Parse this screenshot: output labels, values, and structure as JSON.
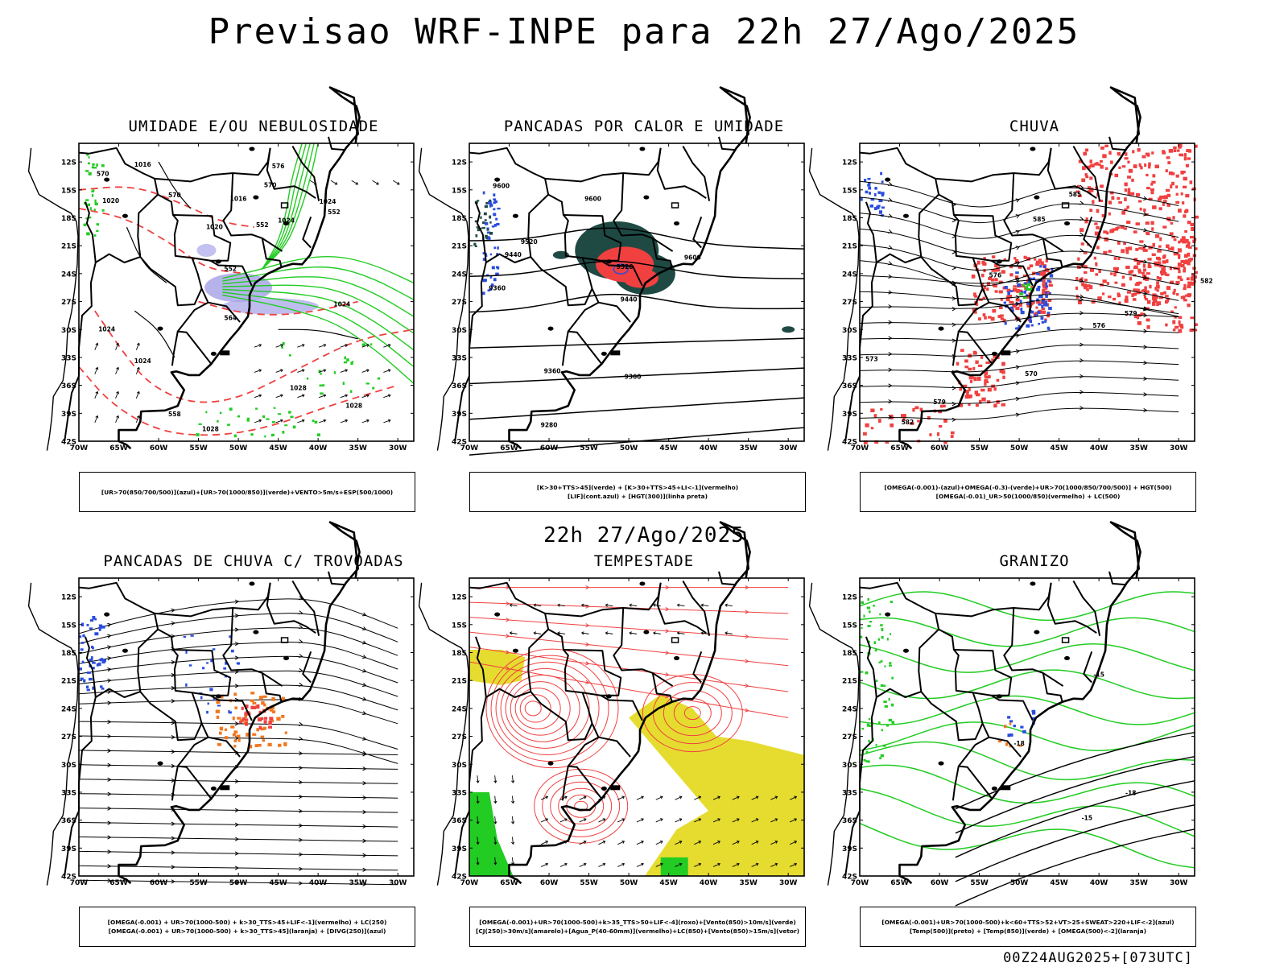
{
  "title": "Previsao WRF-INPE  para 22h 27/Ago/2025",
  "subtitle": "22h 27/Ago/2025",
  "footer": "00Z24AUG2025+[073UTC]",
  "axes": {
    "lat_ticks": [
      "12S",
      "15S",
      "18S",
      "21S",
      "24S",
      "27S",
      "30S",
      "33S",
      "36S",
      "39S",
      "42S"
    ],
    "lon_ticks": [
      "70W",
      "65W",
      "60W",
      "55W",
      "50W",
      "45W",
      "40W",
      "35W",
      "30W"
    ],
    "lat_range": [
      -42,
      -10
    ],
    "lon_range": [
      -70,
      -28
    ]
  },
  "colors": {
    "red": "#f04040",
    "green": "#22cc22",
    "blue": "#2a4de0",
    "teal": "#1f4a44",
    "yellow": "#e6dc30",
    "orange": "#f07820",
    "lavender": "#a9a6e8",
    "salmon": "#f07060"
  },
  "panels": [
    {
      "id": "umidade",
      "title": "UMIDADE E/OU NEBULOSIDADE",
      "legend": [
        "[UR>70(850/700/500)](azul)+[UR>70(1000/850)](verde)+VENTO>5m/s+ESP(500/1000)"
      ],
      "contour_labels": [
        "1016",
        "1016",
        "1020",
        "1020",
        "1024",
        "1024",
        "1024",
        "1028",
        "1028",
        "1028",
        "1024",
        "1024",
        "570",
        "570",
        "564",
        "558",
        "552",
        "552",
        "552",
        "576",
        "570"
      ]
    },
    {
      "id": "pancadas-calor",
      "title": "PANCADAS POR CALOR E UMIDADE",
      "legend": [
        "[K>30+TTS>45](verde)  +  [K>30+TTS>45+LI<-1](vermelho)",
        "[LIF](cont.azul)  +  [HGT(300)](linha preta)"
      ],
      "contour_labels": [
        "9600",
        "9600",
        "9520",
        "9440",
        "9360",
        "9520",
        "9440",
        "9600",
        "9360",
        "9360",
        "9280"
      ]
    },
    {
      "id": "chuva",
      "title": "CHUVA",
      "legend": [
        "[OMEGA(-0.001)-(azul)+OMEGA(-0.3)-(verde)+UR>70(1000/850/700/500)]  +  HGT(500)",
        "[OMEGA(-0.01)_UR>50(1000/850)(vermelho)  +  LC(500)"
      ],
      "contour_labels": [
        "585",
        "585",
        "582",
        "579",
        "576",
        "573",
        "570",
        "579",
        "582",
        "576"
      ]
    },
    {
      "id": "pancadas-trovoadas",
      "title": "PANCADAS DE CHUVA C/ TROVOADAS",
      "legend": [
        "[OMEGA(-0.001)  +  UR>70(1000-500)  +  k>30_TTS>45+LIF<-1](vermelho)  +  LC(250)",
        "[OMEGA(-0.001)  +  UR>70(1000-500)  +  k>30_TTS>45](laranja)  +  [DIVG(250)](azul)"
      ]
    },
    {
      "id": "tempestade",
      "title": "TEMPESTADE",
      "legend": [
        "[OMEGA(-0.001)+UR>70(1000-500)+k>35_TTS>50+LIF<-4](roxo)+[Vento(850)>10m/s](verde)",
        "[CJ(250)>30m/s](amarelo)+[Agua_P(40-60mm)](vermelho)+LC(850)+[Vento(850)>15m/s](vetor)"
      ]
    },
    {
      "id": "granizo",
      "title": "GRANIZO",
      "legend": [
        "[OMEGA(-0.001)+UR>70(1000-500)+k<60+TTS>52+VT>25+SWEAT>220+LIF<-2](azul)",
        "[Temp(500)](preto)  +  [Temp(850)](verde)  +  [OMEGA(500)<-2](laranja)"
      ],
      "contour_labels": [
        "-15",
        "-18",
        "-18",
        "-15"
      ]
    }
  ]
}
